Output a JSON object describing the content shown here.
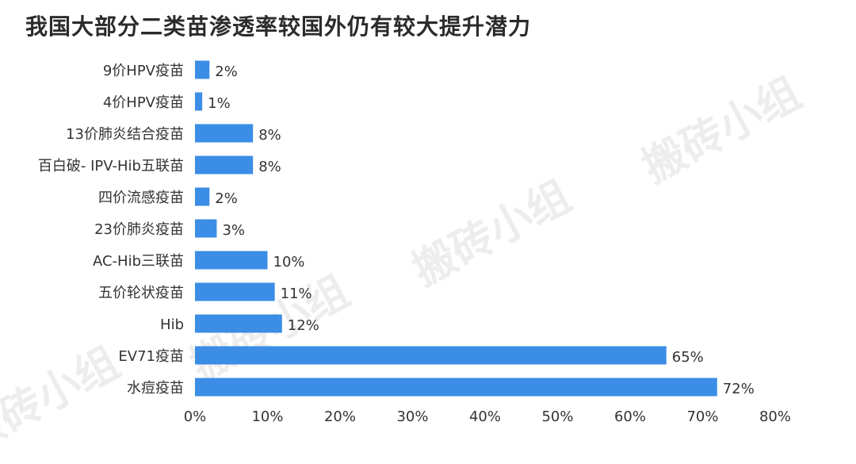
{
  "chart_data": {
    "type": "bar",
    "orientation": "horizontal",
    "title": "我国大部分二类苗渗透率较国外仍有较大提升潜力",
    "categories": [
      "9价HPV疫苗",
      "4价HPV疫苗",
      "13价肺炎结合疫苗",
      "百白破- IPV-Hib五联苗",
      "四价流感疫苗",
      "23价肺炎疫苗",
      "AC-Hib三联苗",
      "五价轮状疫苗",
      "Hib",
      "EV71疫苗",
      "水痘疫苗"
    ],
    "values": [
      2,
      1,
      8,
      8,
      2,
      3,
      10,
      11,
      12,
      65,
      72
    ],
    "value_labels": [
      "2%",
      "1%",
      "8%",
      "8%",
      "2%",
      "3%",
      "10%",
      "11%",
      "12%",
      "65%",
      "72%"
    ],
    "xlim": [
      0,
      80
    ],
    "x_ticks": [
      0,
      10,
      20,
      30,
      40,
      50,
      60,
      70,
      80
    ],
    "x_tick_labels": [
      "0%",
      "10%",
      "20%",
      "30%",
      "40%",
      "50%",
      "60%",
      "70%",
      "80%"
    ],
    "grid": false,
    "bar_color": "#3b8de6"
  },
  "watermark": "搬砖小组"
}
